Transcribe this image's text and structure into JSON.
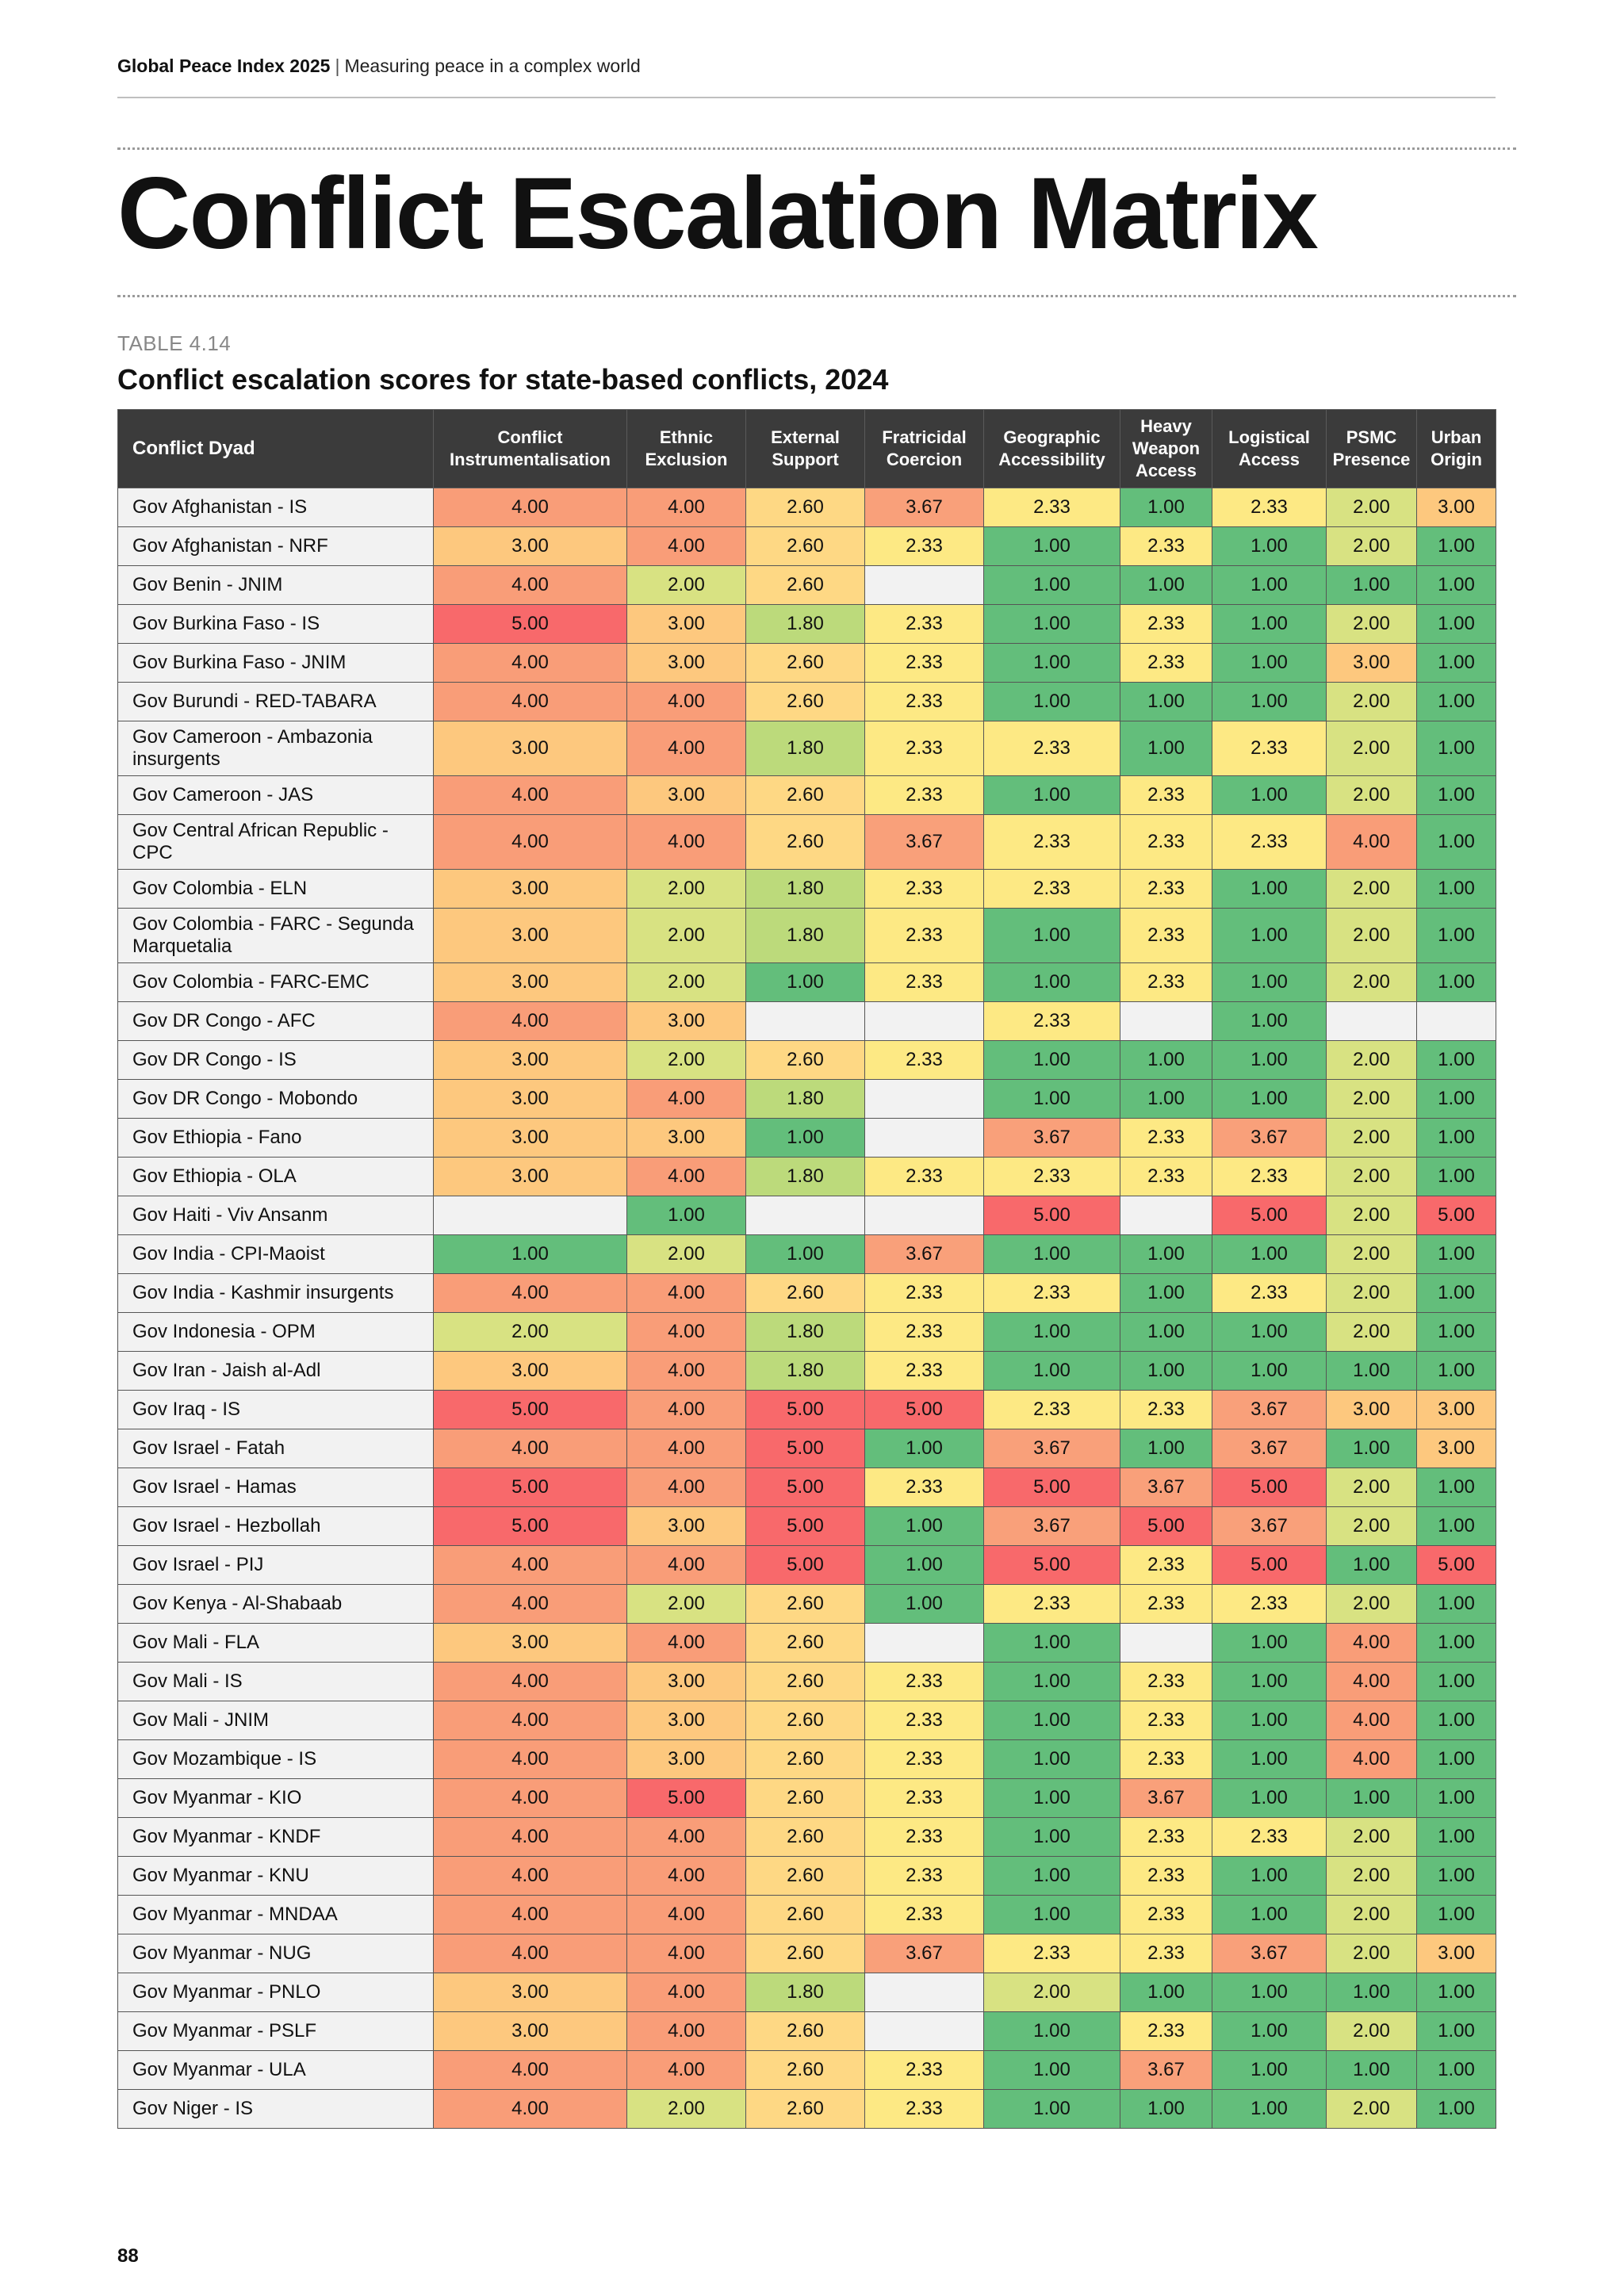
{
  "header": {
    "publication": "Global Peace Index 2025",
    "separator": "|",
    "subtitle": "Measuring peace in a complex world"
  },
  "page_title": "Conflict Escalation Matrix",
  "table_number": "TABLE 4.14",
  "table_caption": "Conflict escalation scores for state-based conflicts, 2024",
  "columns": [
    "Conflict Dyad",
    "Conflict Instrumentalisation",
    "Ethnic Exclusion",
    "External Support",
    "Fratricidal Coercion",
    "Geographic Accessibility",
    "Heavy Weapon Access",
    "Logistical Access",
    "PSMC Presence",
    "Urban Origin"
  ],
  "colors": {
    "1.00": "#63be7b",
    "1.80": "#bcda7b",
    "2.00": "#d8e282",
    "2.33": "#fde984",
    "2.60": "#fed884",
    "3.00": "#fdc87e",
    "3.67": "#f9a07a",
    "4.00": "#f99d78",
    "5.00": "#f8696b",
    "empty": "#f2f2f2",
    "header_bg": "#3b3b3b"
  },
  "rows": [
    {
      "dyad": "Gov Afghanistan - IS",
      "values": [
        "4.00",
        "4.00",
        "2.60",
        "3.67",
        "2.33",
        "1.00",
        "2.33",
        "2.00",
        "3.00"
      ]
    },
    {
      "dyad": "Gov Afghanistan - NRF",
      "values": [
        "3.00",
        "4.00",
        "2.60",
        "2.33",
        "1.00",
        "2.33",
        "1.00",
        "2.00",
        "1.00"
      ]
    },
    {
      "dyad": "Gov Benin - JNIM",
      "values": [
        "4.00",
        "2.00",
        "2.60",
        "",
        "1.00",
        "1.00",
        "1.00",
        "1.00",
        "1.00"
      ]
    },
    {
      "dyad": "Gov Burkina Faso - IS",
      "values": [
        "5.00",
        "3.00",
        "1.80",
        "2.33",
        "1.00",
        "2.33",
        "1.00",
        "2.00",
        "1.00"
      ]
    },
    {
      "dyad": "Gov Burkina Faso - JNIM",
      "values": [
        "4.00",
        "3.00",
        "2.60",
        "2.33",
        "1.00",
        "2.33",
        "1.00",
        "3.00",
        "1.00"
      ]
    },
    {
      "dyad": "Gov Burundi - RED-TABARA",
      "values": [
        "4.00",
        "4.00",
        "2.60",
        "2.33",
        "1.00",
        "1.00",
        "1.00",
        "2.00",
        "1.00"
      ]
    },
    {
      "dyad": "Gov Cameroon - Ambazonia insurgents",
      "values": [
        "3.00",
        "4.00",
        "1.80",
        "2.33",
        "2.33",
        "1.00",
        "2.33",
        "2.00",
        "1.00"
      ]
    },
    {
      "dyad": "Gov Cameroon - JAS",
      "values": [
        "4.00",
        "3.00",
        "2.60",
        "2.33",
        "1.00",
        "2.33",
        "1.00",
        "2.00",
        "1.00"
      ]
    },
    {
      "dyad": "Gov Central African Republic - CPC",
      "values": [
        "4.00",
        "4.00",
        "2.60",
        "3.67",
        "2.33",
        "2.33",
        "2.33",
        "4.00",
        "1.00"
      ]
    },
    {
      "dyad": "Gov Colombia - ELN",
      "values": [
        "3.00",
        "2.00",
        "1.80",
        "2.33",
        "2.33",
        "2.33",
        "1.00",
        "2.00",
        "1.00"
      ]
    },
    {
      "dyad": "Gov Colombia - FARC - Segunda Marquetalia",
      "values": [
        "3.00",
        "2.00",
        "1.80",
        "2.33",
        "1.00",
        "2.33",
        "1.00",
        "2.00",
        "1.00"
      ]
    },
    {
      "dyad": "Gov Colombia - FARC-EMC",
      "values": [
        "3.00",
        "2.00",
        "1.00",
        "2.33",
        "1.00",
        "2.33",
        "1.00",
        "2.00",
        "1.00"
      ]
    },
    {
      "dyad": "Gov DR Congo - AFC",
      "values": [
        "4.00",
        "3.00",
        "",
        "",
        "2.33",
        "",
        "1.00",
        "",
        ""
      ]
    },
    {
      "dyad": "Gov DR Congo - IS",
      "values": [
        "3.00",
        "2.00",
        "2.60",
        "2.33",
        "1.00",
        "1.00",
        "1.00",
        "2.00",
        "1.00"
      ]
    },
    {
      "dyad": "Gov DR Congo - Mobondo",
      "values": [
        "3.00",
        "4.00",
        "1.80",
        "",
        "1.00",
        "1.00",
        "1.00",
        "2.00",
        "1.00"
      ]
    },
    {
      "dyad": "Gov Ethiopia - Fano",
      "values": [
        "3.00",
        "3.00",
        "1.00",
        "",
        "3.67",
        "2.33",
        "3.67",
        "2.00",
        "1.00"
      ]
    },
    {
      "dyad": "Gov Ethiopia - OLA",
      "values": [
        "3.00",
        "4.00",
        "1.80",
        "2.33",
        "2.33",
        "2.33",
        "2.33",
        "2.00",
        "1.00"
      ]
    },
    {
      "dyad": "Gov Haiti - Viv Ansanm",
      "values": [
        "",
        "1.00",
        "",
        "",
        "5.00",
        "",
        "5.00",
        "2.00",
        "5.00"
      ]
    },
    {
      "dyad": "Gov India - CPI-Maoist",
      "values": [
        "1.00",
        "2.00",
        "1.00",
        "3.67",
        "1.00",
        "1.00",
        "1.00",
        "2.00",
        "1.00"
      ]
    },
    {
      "dyad": "Gov India - Kashmir insurgents",
      "values": [
        "4.00",
        "4.00",
        "2.60",
        "2.33",
        "2.33",
        "1.00",
        "2.33",
        "2.00",
        "1.00"
      ]
    },
    {
      "dyad": "Gov Indonesia - OPM",
      "values": [
        "2.00",
        "4.00",
        "1.80",
        "2.33",
        "1.00",
        "1.00",
        "1.00",
        "2.00",
        "1.00"
      ]
    },
    {
      "dyad": "Gov Iran - Jaish al-Adl",
      "values": [
        "3.00",
        "4.00",
        "1.80",
        "2.33",
        "1.00",
        "1.00",
        "1.00",
        "1.00",
        "1.00"
      ]
    },
    {
      "dyad": "Gov Iraq - IS",
      "values": [
        "5.00",
        "4.00",
        "5.00",
        "5.00",
        "2.33",
        "2.33",
        "3.67",
        "3.00",
        "3.00"
      ]
    },
    {
      "dyad": "Gov Israel - Fatah",
      "values": [
        "4.00",
        "4.00",
        "5.00",
        "1.00",
        "3.67",
        "1.00",
        "3.67",
        "1.00",
        "3.00"
      ]
    },
    {
      "dyad": "Gov Israel - Hamas",
      "values": [
        "5.00",
        "4.00",
        "5.00",
        "2.33",
        "5.00",
        "3.67",
        "5.00",
        "2.00",
        "1.00"
      ]
    },
    {
      "dyad": "Gov Israel - Hezbollah",
      "values": [
        "5.00",
        "3.00",
        "5.00",
        "1.00",
        "3.67",
        "5.00",
        "3.67",
        "2.00",
        "1.00"
      ]
    },
    {
      "dyad": "Gov Israel - PIJ",
      "values": [
        "4.00",
        "4.00",
        "5.00",
        "1.00",
        "5.00",
        "2.33",
        "5.00",
        "1.00",
        "5.00"
      ]
    },
    {
      "dyad": "Gov Kenya - Al-Shabaab",
      "values": [
        "4.00",
        "2.00",
        "2.60",
        "1.00",
        "2.33",
        "2.33",
        "2.33",
        "2.00",
        "1.00"
      ]
    },
    {
      "dyad": "Gov Mali - FLA",
      "values": [
        "3.00",
        "4.00",
        "2.60",
        "",
        "1.00",
        "",
        "1.00",
        "4.00",
        "1.00"
      ]
    },
    {
      "dyad": "Gov Mali - IS",
      "values": [
        "4.00",
        "3.00",
        "2.60",
        "2.33",
        "1.00",
        "2.33",
        "1.00",
        "4.00",
        "1.00"
      ]
    },
    {
      "dyad": "Gov Mali - JNIM",
      "values": [
        "4.00",
        "3.00",
        "2.60",
        "2.33",
        "1.00",
        "2.33",
        "1.00",
        "4.00",
        "1.00"
      ]
    },
    {
      "dyad": "Gov Mozambique - IS",
      "values": [
        "4.00",
        "3.00",
        "2.60",
        "2.33",
        "1.00",
        "2.33",
        "1.00",
        "4.00",
        "1.00"
      ]
    },
    {
      "dyad": "Gov Myanmar - KIO",
      "values": [
        "4.00",
        "5.00",
        "2.60",
        "2.33",
        "1.00",
        "3.67",
        "1.00",
        "1.00",
        "1.00"
      ]
    },
    {
      "dyad": "Gov Myanmar - KNDF",
      "values": [
        "4.00",
        "4.00",
        "2.60",
        "2.33",
        "1.00",
        "2.33",
        "2.33",
        "2.00",
        "1.00"
      ]
    },
    {
      "dyad": "Gov Myanmar - KNU",
      "values": [
        "4.00",
        "4.00",
        "2.60",
        "2.33",
        "1.00",
        "2.33",
        "1.00",
        "2.00",
        "1.00"
      ]
    },
    {
      "dyad": "Gov Myanmar - MNDAA",
      "values": [
        "4.00",
        "4.00",
        "2.60",
        "2.33",
        "1.00",
        "2.33",
        "1.00",
        "2.00",
        "1.00"
      ]
    },
    {
      "dyad": "Gov Myanmar - NUG",
      "values": [
        "4.00",
        "4.00",
        "2.60",
        "3.67",
        "2.33",
        "2.33",
        "3.67",
        "2.00",
        "3.00"
      ]
    },
    {
      "dyad": "Gov Myanmar - PNLO",
      "values": [
        "3.00",
        "4.00",
        "1.80",
        "",
        "2.00",
        "1.00",
        "1.00",
        "1.00",
        "1.00"
      ]
    },
    {
      "dyad": "Gov Myanmar - PSLF",
      "values": [
        "3.00",
        "4.00",
        "2.60",
        "",
        "1.00",
        "2.33",
        "1.00",
        "2.00",
        "1.00"
      ]
    },
    {
      "dyad": "Gov Myanmar - ULA",
      "values": [
        "4.00",
        "4.00",
        "2.60",
        "2.33",
        "1.00",
        "3.67",
        "1.00",
        "1.00",
        "1.00"
      ]
    },
    {
      "dyad": "Gov Niger - IS",
      "values": [
        "4.00",
        "2.00",
        "2.60",
        "2.33",
        "1.00",
        "1.00",
        "1.00",
        "2.00",
        "1.00"
      ]
    }
  ],
  "page_number": "88"
}
